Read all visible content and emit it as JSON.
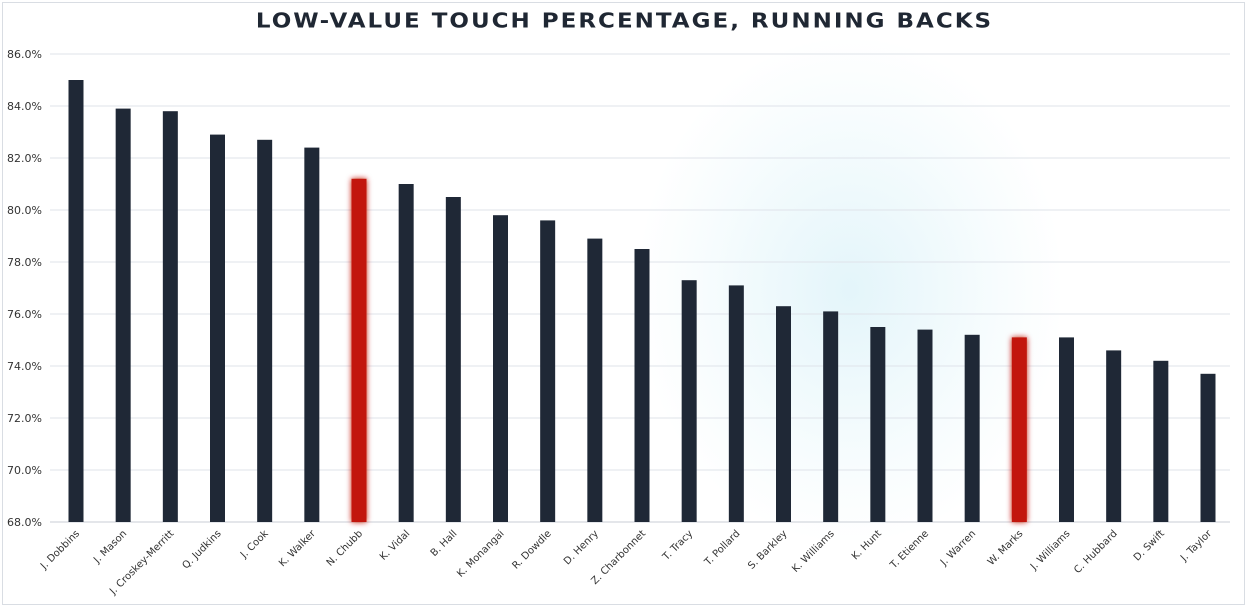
{
  "chart_data": {
    "type": "bar",
    "title": "Low-Value Touch Percentage, Running Backs",
    "xlabel": "",
    "ylabel": "",
    "ylim": [
      68,
      86
    ],
    "yticks": [
      "68.0%",
      "70.0%",
      "72.0%",
      "74.0%",
      "76.0%",
      "78.0%",
      "80.0%",
      "82.0%",
      "84.0%",
      "86.0%"
    ],
    "grid": true,
    "categories": [
      "J. Dobbins",
      "J. Mason",
      "J. Croskey-Merritt",
      "Q. Judkins",
      "J. Cook",
      "K. Walker",
      "N. Chubb",
      "K. Vidal",
      "B. Hall",
      "K. Monangai",
      "R. Dowdle",
      "D. Henry",
      "Z. Charbonnet",
      "T. Tracy",
      "T. Pollard",
      "S. Barkley",
      "K. Williams",
      "K. Hunt",
      "T. Etienne",
      "J. Warren",
      "W. Marks",
      "J. Williams",
      "C. Hubbard",
      "D. Swift",
      "J. Taylor"
    ],
    "values": [
      85.0,
      83.9,
      83.8,
      82.9,
      82.7,
      82.4,
      81.2,
      81.0,
      80.5,
      79.8,
      79.6,
      78.9,
      78.5,
      77.3,
      77.1,
      76.3,
      76.1,
      75.5,
      75.4,
      75.2,
      75.1,
      75.1,
      74.6,
      74.2,
      73.7
    ],
    "highlighted": [
      "N. Chubb",
      "W. Marks"
    ],
    "colors": {
      "bar": "#1f2836",
      "highlight": "#c2170e",
      "grid": "#dfe3ea"
    }
  }
}
